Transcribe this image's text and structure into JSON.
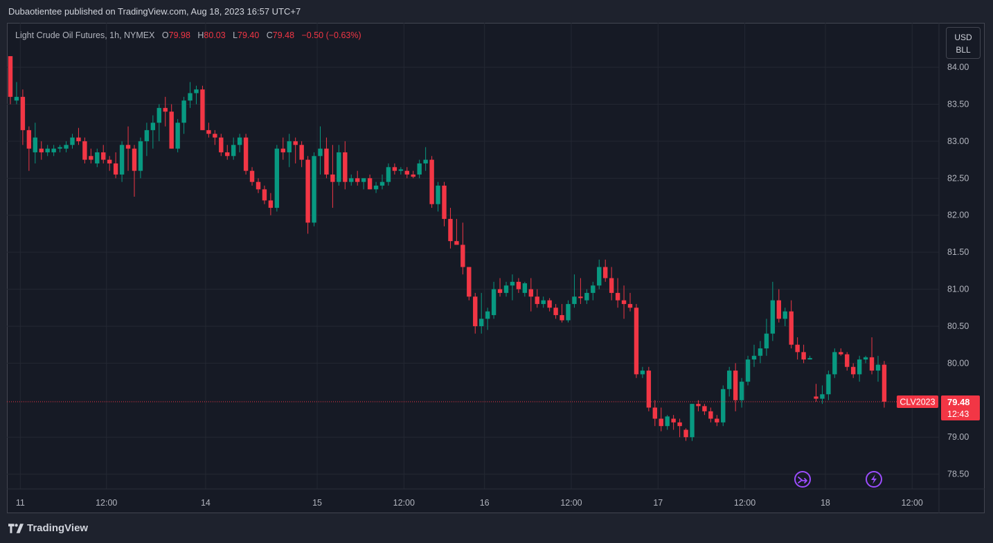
{
  "header": {
    "published": "Dubaotientee published on TradingView.com, Aug 18, 2023 16:57 UTC+7"
  },
  "legend": {
    "symbol": "Light Crude Oil Futures, 1h, NYMEX",
    "o_label": "O",
    "o_value": "79.98",
    "h_label": "H",
    "h_value": "80.03",
    "l_label": "L",
    "l_value": "79.40",
    "c_label": "C",
    "c_value": "79.48",
    "change": "−0.50 (−0.63%)"
  },
  "currency": {
    "line1": "USD",
    "line2": "BLL"
  },
  "price_tag": {
    "symbol": "CLV2023",
    "price": "79.48",
    "countdown": "12:43"
  },
  "footer": {
    "brand": "TradingView"
  },
  "colors": {
    "up": "#089981",
    "down": "#f23645",
    "grid": "#242833",
    "text": "#b2b5be",
    "marker": "#9c4dff"
  },
  "icons": [
    "split-arrow-icon",
    "lightning-icon",
    "tradingview-logo-icon"
  ],
  "chart_data": {
    "type": "candlestick",
    "title": "Light Crude Oil Futures, 1h, NYMEX",
    "ylim": [
      78.3,
      84.6
    ],
    "yticks": [
      84.0,
      83.5,
      83.0,
      82.5,
      82.0,
      81.5,
      81.0,
      80.5,
      80.0,
      79.0,
      78.5
    ],
    "ytick_labels": [
      "84.00",
      "83.50",
      "83.00",
      "82.50",
      "82.00",
      "81.50",
      "81.00",
      "80.50",
      "80.00",
      "79.00",
      "78.50"
    ],
    "xticks": [
      {
        "label": "11",
        "bar": 1.6
      },
      {
        "label": "12:00",
        "bar": 15.5
      },
      {
        "label": "14",
        "bar": 31.5
      },
      {
        "label": "15",
        "bar": 49.5
      },
      {
        "label": "12:00",
        "bar": 63.5
      },
      {
        "label": "16",
        "bar": 76.5
      },
      {
        "label": "12:00",
        "bar": 90.5
      },
      {
        "label": "17",
        "bar": 104.5
      },
      {
        "label": "12:00",
        "bar": 118.5
      },
      {
        "label": "18",
        "bar": 131.5
      },
      {
        "label": "12:00",
        "bar": 145.5
      }
    ],
    "last_price": 79.48,
    "grid": true,
    "candles": [
      [
        84.15,
        84.15,
        83.5,
        83.6
      ],
      [
        83.55,
        83.8,
        83.5,
        83.6
      ],
      [
        83.6,
        83.7,
        82.95,
        83.15
      ],
      [
        83.15,
        83.2,
        82.6,
        82.9
      ],
      [
        82.85,
        83.25,
        82.7,
        83.05
      ],
      [
        82.9,
        83.0,
        82.75,
        82.85
      ],
      [
        82.85,
        82.95,
        82.8,
        82.9
      ],
      [
        82.85,
        82.95,
        82.8,
        82.9
      ],
      [
        82.9,
        82.95,
        82.85,
        82.92
      ],
      [
        82.9,
        83.0,
        82.85,
        82.95
      ],
      [
        82.95,
        83.1,
        82.9,
        83.05
      ],
      [
        83.05,
        83.18,
        82.95,
        83.0
      ],
      [
        83.0,
        83.05,
        82.7,
        82.75
      ],
      [
        82.8,
        82.9,
        82.7,
        82.75
      ],
      [
        82.7,
        82.9,
        82.65,
        82.85
      ],
      [
        82.85,
        82.95,
        82.7,
        82.75
      ],
      [
        82.75,
        82.8,
        82.6,
        82.7
      ],
      [
        82.7,
        82.85,
        82.5,
        82.55
      ],
      [
        82.55,
        83.0,
        82.45,
        82.95
      ],
      [
        82.95,
        83.2,
        82.6,
        82.9
      ],
      [
        82.9,
        82.95,
        82.25,
        82.6
      ],
      [
        82.6,
        83.05,
        82.5,
        83.0
      ],
      [
        83.0,
        83.25,
        82.8,
        83.15
      ],
      [
        83.15,
        83.35,
        82.9,
        83.25
      ],
      [
        83.25,
        83.5,
        83.0,
        83.45
      ],
      [
        83.45,
        83.6,
        83.2,
        83.4
      ],
      [
        83.4,
        83.5,
        82.9,
        82.9
      ],
      [
        82.9,
        83.3,
        82.85,
        83.25
      ],
      [
        83.25,
        83.6,
        83.1,
        83.55
      ],
      [
        83.55,
        83.8,
        83.45,
        83.65
      ],
      [
        83.65,
        83.75,
        83.5,
        83.7
      ],
      [
        83.7,
        83.75,
        83.15,
        83.15
      ],
      [
        83.15,
        83.25,
        83.05,
        83.1
      ],
      [
        83.1,
        83.15,
        82.95,
        83.05
      ],
      [
        83.05,
        83.1,
        82.8,
        82.85
      ],
      [
        82.85,
        82.95,
        82.75,
        82.8
      ],
      [
        82.8,
        83.05,
        82.75,
        82.95
      ],
      [
        82.95,
        83.1,
        82.85,
        83.05
      ],
      [
        83.05,
        83.1,
        82.55,
        82.6
      ],
      [
        82.6,
        82.65,
        82.4,
        82.45
      ],
      [
        82.45,
        82.5,
        82.3,
        82.35
      ],
      [
        82.35,
        82.4,
        82.15,
        82.2
      ],
      [
        82.2,
        82.3,
        82.0,
        82.1
      ],
      [
        82.1,
        82.95,
        82.05,
        82.9
      ],
      [
        82.9,
        83.05,
        82.75,
        82.85
      ],
      [
        82.85,
        83.1,
        82.65,
        83.0
      ],
      [
        83.0,
        83.05,
        82.7,
        82.95
      ],
      [
        82.95,
        83.0,
        82.65,
        82.75
      ],
      [
        82.75,
        82.8,
        81.75,
        81.9
      ],
      [
        81.9,
        82.85,
        81.85,
        82.8
      ],
      [
        82.8,
        83.2,
        82.55,
        82.9
      ],
      [
        82.9,
        83.05,
        82.5,
        82.55
      ],
      [
        82.55,
        82.95,
        82.1,
        82.45
      ],
      [
        82.45,
        82.95,
        82.4,
        82.85
      ],
      [
        82.85,
        83.0,
        82.35,
        82.45
      ],
      [
        82.45,
        82.55,
        82.4,
        82.5
      ],
      [
        82.5,
        82.6,
        82.4,
        82.45
      ],
      [
        82.45,
        82.5,
        82.35,
        82.5
      ],
      [
        82.5,
        82.55,
        82.35,
        82.35
      ],
      [
        82.35,
        82.45,
        82.3,
        82.4
      ],
      [
        82.4,
        82.55,
        82.35,
        82.45
      ],
      [
        82.45,
        82.7,
        82.4,
        82.65
      ],
      [
        82.65,
        82.7,
        82.55,
        82.6
      ],
      [
        82.6,
        82.65,
        82.55,
        82.62
      ],
      [
        82.6,
        82.65,
        82.5,
        82.55
      ],
      [
        82.55,
        82.6,
        82.5,
        82.52
      ],
      [
        82.55,
        82.75,
        82.5,
        82.7
      ],
      [
        82.7,
        82.92,
        82.6,
        82.75
      ],
      [
        82.75,
        82.8,
        82.1,
        82.15
      ],
      [
        82.15,
        82.45,
        82.05,
        82.4
      ],
      [
        82.4,
        82.45,
        81.85,
        81.95
      ],
      [
        81.95,
        82.1,
        81.55,
        81.65
      ],
      [
        81.65,
        81.95,
        81.6,
        81.6
      ],
      [
        81.6,
        81.9,
        81.2,
        81.3
      ],
      [
        81.3,
        81.3,
        80.85,
        80.9
      ],
      [
        80.9,
        80.95,
        80.4,
        80.5
      ],
      [
        80.5,
        80.95,
        80.4,
        80.6
      ],
      [
        80.6,
        80.75,
        80.45,
        80.7
      ],
      [
        80.65,
        81.1,
        80.6,
        81.0
      ],
      [
        81.0,
        81.15,
        80.9,
        80.95
      ],
      [
        80.95,
        81.1,
        80.9,
        81.05
      ],
      [
        81.05,
        81.2,
        80.85,
        81.1
      ],
      [
        81.1,
        81.15,
        80.95,
        81.0
      ],
      [
        80.95,
        81.1,
        80.9,
        81.08
      ],
      [
        81.0,
        81.15,
        80.7,
        80.9
      ],
      [
        80.9,
        81.0,
        80.75,
        80.8
      ],
      [
        80.8,
        80.9,
        80.75,
        80.85
      ],
      [
        80.85,
        80.88,
        80.7,
        80.75
      ],
      [
        80.75,
        80.8,
        80.6,
        80.65
      ],
      [
        80.65,
        80.8,
        80.55,
        80.58
      ],
      [
        80.58,
        80.85,
        80.55,
        80.8
      ],
      [
        80.8,
        81.2,
        80.75,
        80.9
      ],
      [
        80.9,
        81.15,
        80.8,
        80.88
      ],
      [
        80.85,
        81.0,
        80.8,
        80.95
      ],
      [
        80.95,
        81.1,
        80.85,
        81.05
      ],
      [
        81.05,
        81.4,
        81.0,
        81.3
      ],
      [
        81.3,
        81.4,
        81.1,
        81.15
      ],
      [
        81.15,
        81.3,
        80.85,
        80.95
      ],
      [
        80.95,
        81.15,
        80.75,
        80.85
      ],
      [
        80.85,
        81.05,
        80.6,
        80.8
      ],
      [
        80.8,
        80.95,
        80.7,
        80.75
      ],
      [
        80.75,
        80.8,
        79.8,
        79.85
      ],
      [
        79.85,
        79.95,
        79.8,
        79.9
      ],
      [
        79.9,
        79.95,
        79.35,
        79.4
      ],
      [
        79.4,
        79.5,
        79.15,
        79.25
      ],
      [
        79.25,
        79.4,
        79.08,
        79.15
      ],
      [
        79.15,
        79.3,
        79.1,
        79.28
      ],
      [
        79.25,
        79.3,
        79.1,
        79.2
      ],
      [
        79.2,
        79.25,
        79.0,
        79.15
      ],
      [
        79.1,
        79.12,
        78.95,
        79.0
      ],
      [
        79.0,
        79.45,
        78.95,
        79.45
      ],
      [
        79.45,
        79.5,
        79.35,
        79.42
      ],
      [
        79.42,
        79.45,
        79.3,
        79.35
      ],
      [
        79.35,
        79.4,
        79.2,
        79.25
      ],
      [
        79.25,
        79.3,
        79.15,
        79.2
      ],
      [
        79.2,
        79.7,
        79.15,
        79.65
      ],
      [
        79.65,
        79.95,
        79.55,
        79.9
      ],
      [
        79.9,
        80.0,
        79.35,
        79.5
      ],
      [
        79.5,
        79.8,
        79.4,
        79.75
      ],
      [
        79.75,
        80.1,
        79.7,
        80.05
      ],
      [
        80.05,
        80.25,
        79.95,
        80.1
      ],
      [
        80.1,
        80.3,
        80.0,
        80.2
      ],
      [
        80.2,
        80.6,
        80.1,
        80.4
      ],
      [
        80.4,
        81.1,
        80.3,
        80.85
      ],
      [
        80.85,
        81.0,
        80.55,
        80.6
      ],
      [
        80.6,
        80.75,
        80.5,
        80.7
      ],
      [
        80.7,
        80.85,
        80.2,
        80.25
      ],
      [
        80.25,
        80.35,
        80.05,
        80.15
      ],
      [
        80.15,
        80.25,
        80.0,
        80.05
      ],
      [
        80.05,
        80.1,
        80.05,
        80.07
      ],
      [
        79.55,
        79.72,
        79.48,
        79.52
      ],
      [
        79.52,
        79.7,
        79.45,
        79.58
      ],
      [
        79.58,
        79.9,
        79.5,
        79.85
      ],
      [
        79.85,
        80.2,
        79.8,
        80.15
      ],
      [
        80.15,
        80.2,
        80.1,
        80.12
      ],
      [
        80.12,
        80.15,
        79.9,
        79.95
      ],
      [
        79.95,
        80.0,
        79.8,
        79.85
      ],
      [
        79.85,
        80.1,
        79.75,
        80.05
      ],
      [
        80.05,
        80.1,
        80.0,
        80.08
      ],
      [
        80.08,
        80.35,
        79.85,
        79.9
      ],
      [
        79.9,
        80.1,
        79.75,
        79.98
      ],
      [
        79.98,
        80.03,
        79.4,
        79.48
      ]
    ]
  }
}
